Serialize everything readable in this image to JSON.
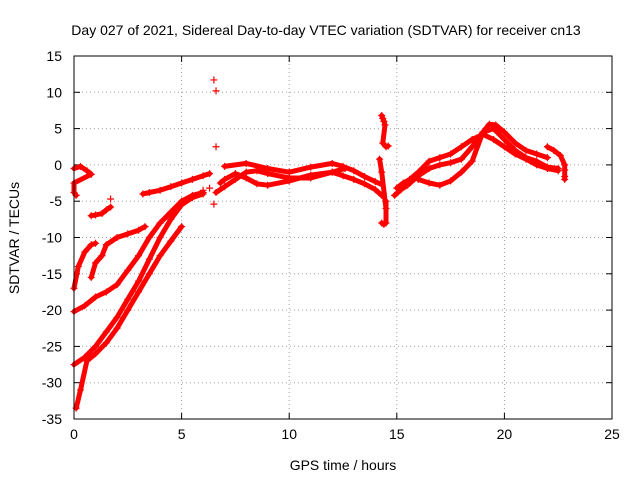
{
  "chart_data": {
    "type": "scatter",
    "title": "Day 027 of 2021, Sidereal Day-to-day VTEC variation (SDTVAR) for receiver cn13",
    "xlabel": "GPS time / hours",
    "ylabel": "SDTVAR / TECUs",
    "xlim": [
      0,
      25
    ],
    "ylim": [
      -35,
      15
    ],
    "xticks": [
      0,
      5,
      10,
      15,
      20,
      25
    ],
    "yticks": [
      -35,
      -30,
      -25,
      -20,
      -15,
      -10,
      -5,
      0,
      5,
      10,
      15
    ],
    "grid": true,
    "marker": "+",
    "color": "#ff0000",
    "series": [
      {
        "name": "arc-1",
        "points": [
          [
            0.0,
            -20.2
          ],
          [
            0.5,
            -19.4
          ],
          [
            1.0,
            -18.2
          ],
          [
            1.5,
            -17.5
          ],
          [
            2.0,
            -16.5
          ],
          [
            2.5,
            -14.5
          ],
          [
            3.0,
            -12.5
          ],
          [
            3.5,
            -10.0
          ],
          [
            4.0,
            -8.0
          ],
          [
            4.5,
            -6.5
          ],
          [
            5.0,
            -5.0
          ],
          [
            5.5,
            -4.2
          ],
          [
            6.0,
            -3.8
          ]
        ]
      },
      {
        "name": "arc-2",
        "points": [
          [
            0.0,
            -27.5
          ],
          [
            0.5,
            -26.5
          ],
          [
            1.0,
            -25.0
          ],
          [
            1.5,
            -23.0
          ],
          [
            2.0,
            -21.0
          ],
          [
            2.5,
            -18.5
          ],
          [
            3.0,
            -16.0
          ],
          [
            3.5,
            -13.0
          ],
          [
            4.0,
            -10.0
          ],
          [
            4.5,
            -7.5
          ],
          [
            5.0,
            -5.5
          ],
          [
            5.5,
            -4.5
          ],
          [
            6.0,
            -4.0
          ]
        ]
      },
      {
        "name": "arc-3",
        "points": [
          [
            0.1,
            -33.5
          ],
          [
            0.3,
            -31.0
          ],
          [
            0.6,
            -27.0
          ],
          [
            1.0,
            -26.0
          ],
          [
            1.5,
            -24.5
          ],
          [
            2.0,
            -22.5
          ],
          [
            2.5,
            -20.0
          ],
          [
            3.0,
            -17.5
          ],
          [
            3.5,
            -15.0
          ],
          [
            4.0,
            -12.5
          ],
          [
            4.5,
            -10.5
          ],
          [
            5.0,
            -8.5
          ]
        ]
      },
      {
        "name": "arc-4",
        "points": [
          [
            0.0,
            -17.0
          ],
          [
            0.2,
            -14.0
          ],
          [
            0.5,
            -12.0
          ],
          [
            0.8,
            -11.0
          ],
          [
            1.0,
            -10.8
          ]
        ]
      },
      {
        "name": "arc-5",
        "points": [
          [
            0.8,
            -15.5
          ],
          [
            1.0,
            -13.5
          ],
          [
            1.3,
            -12.5
          ],
          [
            1.5,
            -11.0
          ],
          [
            2.0,
            -10.0
          ],
          [
            2.5,
            -9.5
          ],
          [
            3.0,
            -9.0
          ],
          [
            3.3,
            -8.5
          ]
        ]
      },
      {
        "name": "arc-6",
        "points": [
          [
            3.2,
            -4.0
          ],
          [
            3.5,
            -3.8
          ],
          [
            4.0,
            -3.5
          ],
          [
            4.5,
            -3.0
          ],
          [
            5.0,
            -2.5
          ],
          [
            5.5,
            -2.0
          ],
          [
            6.0,
            -1.5
          ],
          [
            6.3,
            -1.2
          ]
        ]
      },
      {
        "name": "arc-7",
        "points": [
          [
            0.0,
            -0.5
          ],
          [
            0.3,
            -0.2
          ],
          [
            0.6,
            -0.8
          ],
          [
            0.8,
            -1.3
          ],
          [
            0.0,
            -2.5
          ],
          [
            0.0,
            -3.8
          ],
          [
            0.1,
            -4.2
          ]
        ]
      },
      {
        "name": "arc-8",
        "points": [
          [
            0.8,
            -7.0
          ],
          [
            1.0,
            -6.9
          ],
          [
            1.3,
            -6.7
          ],
          [
            1.5,
            -6.2
          ],
          [
            1.7,
            -5.8
          ]
        ]
      },
      {
        "name": "arc-9",
        "points": [
          [
            7.0,
            -0.2
          ],
          [
            8.0,
            0.2
          ],
          [
            9.0,
            -0.5
          ],
          [
            10.0,
            -1.0
          ],
          [
            11.0,
            -0.3
          ],
          [
            12.0,
            0.2
          ],
          [
            12.5,
            -0.2
          ],
          [
            13.0,
            -0.8
          ],
          [
            13.5,
            -1.6
          ],
          [
            14.0,
            -2.3
          ],
          [
            14.3,
            -2.7
          ]
        ]
      },
      {
        "name": "arc-10",
        "points": [
          [
            6.8,
            -2.5
          ],
          [
            7.0,
            -2.0
          ],
          [
            7.5,
            -1.2
          ],
          [
            8.0,
            -1.8
          ],
          [
            8.5,
            -2.6
          ],
          [
            9.0,
            -2.8
          ],
          [
            10.0,
            -2.2
          ],
          [
            11.0,
            -1.4
          ],
          [
            12.0,
            -1.0
          ],
          [
            12.5,
            -1.5
          ],
          [
            13.0,
            -2.0
          ],
          [
            13.5,
            -2.6
          ],
          [
            14.0,
            -3.4
          ],
          [
            14.3,
            -4.2
          ]
        ]
      },
      {
        "name": "arc-11",
        "points": [
          [
            6.6,
            -3.8
          ],
          [
            7.0,
            -3.0
          ],
          [
            7.5,
            -2.0
          ],
          [
            8.0,
            -1.0
          ],
          [
            8.5,
            -0.8
          ],
          [
            9.0,
            -1.2
          ],
          [
            10.0,
            -1.8
          ],
          [
            11.0,
            -1.8
          ],
          [
            12.0,
            -1.0
          ],
          [
            12.6,
            -0.5
          ]
        ]
      },
      {
        "name": "arc-12",
        "points": [
          [
            14.9,
            -4.2
          ],
          [
            15.2,
            -3.4
          ],
          [
            15.5,
            -2.8
          ],
          [
            16.0,
            -1.5
          ],
          [
            16.5,
            -0.5
          ],
          [
            17.0,
            0.0
          ],
          [
            17.5,
            0.3
          ],
          [
            18.0,
            0.8
          ],
          [
            18.5,
            2.5
          ],
          [
            19.0,
            4.5
          ],
          [
            19.5,
            5.0
          ],
          [
            20.0,
            3.5
          ],
          [
            20.5,
            2.0
          ],
          [
            21.0,
            1.0
          ],
          [
            21.5,
            0.5
          ],
          [
            22.0,
            -0.3
          ],
          [
            22.5,
            -0.5
          ]
        ]
      },
      {
        "name": "arc-13",
        "points": [
          [
            15.0,
            -3.2
          ],
          [
            15.3,
            -2.5
          ],
          [
            15.6,
            -2.0
          ],
          [
            16.0,
            -1.0
          ],
          [
            16.5,
            0.5
          ],
          [
            17.0,
            1.0
          ],
          [
            17.5,
            1.5
          ],
          [
            18.0,
            2.5
          ],
          [
            18.5,
            3.5
          ],
          [
            19.0,
            4.2
          ],
          [
            19.5,
            3.5
          ],
          [
            20.0,
            2.5
          ],
          [
            20.5,
            1.5
          ],
          [
            21.0,
            0.8
          ],
          [
            21.5,
            0.0
          ],
          [
            22.0,
            -0.5
          ],
          [
            22.5,
            -0.8
          ]
        ]
      },
      {
        "name": "arc-14",
        "points": [
          [
            16.0,
            -2.0
          ],
          [
            16.5,
            -2.5
          ],
          [
            17.0,
            -2.8
          ],
          [
            17.5,
            -2.2
          ],
          [
            18.0,
            -1.0
          ],
          [
            18.5,
            0.5
          ],
          [
            19.0,
            4.5
          ],
          [
            19.3,
            5.6
          ],
          [
            19.6,
            5.5
          ],
          [
            20.0,
            4.5
          ],
          [
            20.5,
            3.0
          ],
          [
            21.0,
            2.0
          ],
          [
            21.5,
            1.5
          ],
          [
            22.0,
            1.0
          ]
        ]
      },
      {
        "name": "arc-15",
        "points": [
          [
            14.3,
            6.8
          ],
          [
            14.35,
            6.4
          ],
          [
            14.4,
            6.0
          ],
          [
            14.45,
            5.5
          ],
          [
            14.35,
            3.0
          ],
          [
            14.5,
            2.5
          ],
          [
            14.6,
            2.6
          ]
        ]
      },
      {
        "name": "arc-16",
        "points": [
          [
            14.3,
            -8.0
          ],
          [
            14.4,
            -8.2
          ],
          [
            14.5,
            -8.0
          ],
          [
            14.5,
            -5.0
          ],
          [
            14.5,
            -6.0
          ],
          [
            14.3,
            -1.0
          ],
          [
            14.2,
            0.8
          ]
        ]
      },
      {
        "name": "arc-17",
        "points": [
          [
            22.0,
            2.5
          ],
          [
            22.3,
            2.0
          ],
          [
            22.6,
            1.3
          ],
          [
            22.8,
            0.0
          ],
          [
            22.8,
            -0.7
          ],
          [
            22.8,
            -1.6
          ],
          [
            22.8,
            -2.0
          ]
        ]
      },
      {
        "name": "outliers",
        "points": [
          [
            6.5,
            11.7
          ],
          [
            6.6,
            10.2
          ],
          [
            6.6,
            2.5
          ],
          [
            6.5,
            -5.4
          ],
          [
            1.7,
            -4.7
          ],
          [
            6.0,
            -3.5
          ],
          [
            6.3,
            -3.2
          ]
        ]
      }
    ]
  }
}
